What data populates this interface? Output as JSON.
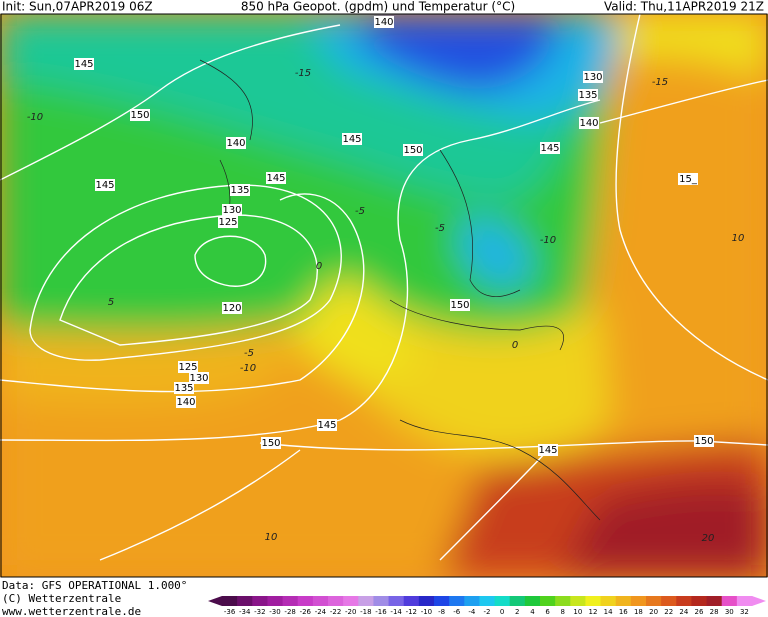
{
  "header": {
    "init": "Init: Sun,07APR2019 06Z",
    "title": "850 hPa Geopot. (gpdm) und Temperatur (°C)",
    "valid": "Valid: Thu,11APR2019 21Z"
  },
  "footer": {
    "data": "Data: GFS OPERATIONAL 1.000°",
    "copyright": "(C) Wetterzentrale",
    "url": "www.wetterzentrale.de"
  },
  "geopotential_labels": [
    "140",
    "145",
    "150",
    "130",
    "135",
    "140",
    "145",
    "150",
    "145",
    "140",
    "145",
    "135",
    "145",
    "130",
    "125",
    "15_",
    "120",
    "150",
    "125",
    "130",
    "135",
    "140",
    "145",
    "150",
    "145",
    "150"
  ],
  "temperature_labels": [
    "-10",
    "-15",
    "-15",
    "-5",
    "-5",
    "-10",
    "0",
    "0",
    "5",
    "10",
    "10",
    "20",
    "-5",
    "-10"
  ],
  "colorbar": {
    "labels": [
      -36,
      -34,
      -32,
      -30,
      -28,
      -26,
      -24,
      -22,
      -20,
      -18,
      -16,
      -14,
      -12,
      -10,
      -8,
      -6,
      -4,
      -2,
      0,
      2,
      4,
      6,
      8,
      10,
      12,
      14,
      16,
      18,
      20,
      22,
      24,
      26,
      28,
      30,
      32
    ],
    "colors": [
      "#4b0c4b",
      "#6a0f6a",
      "#8a168a",
      "#a01ea0",
      "#b42db4",
      "#c83cc8",
      "#d250d2",
      "#dc64dc",
      "#e678e6",
      "#c8a0e6",
      "#a08ce6",
      "#7864e6",
      "#503cdc",
      "#2828c8",
      "#1e46e6",
      "#1e78f0",
      "#1ea0f0",
      "#1ec8f0",
      "#14dcc8",
      "#14c878",
      "#1ec83c",
      "#50d21e",
      "#8cdc1e",
      "#c8e61e",
      "#f0f01e",
      "#f0d21e",
      "#f0b41e",
      "#f0961e",
      "#e6781e",
      "#dc5a1e",
      "#c83c1e",
      "#b4281e",
      "#a01e28",
      "#e650c8",
      "#f08cf0"
    ]
  }
}
